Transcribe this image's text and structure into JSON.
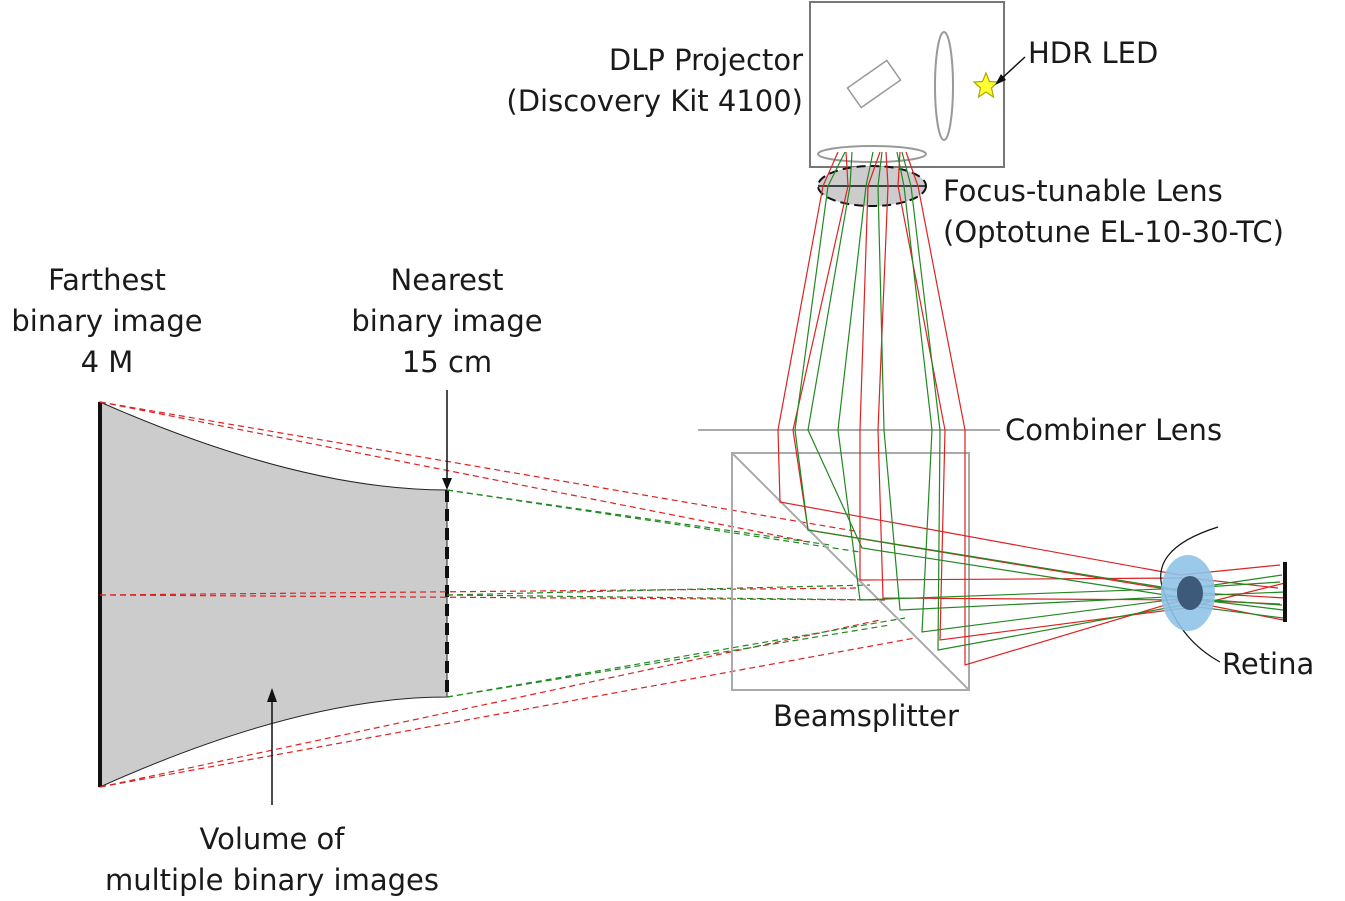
{
  "labels": {
    "dlp_projector": [
      "DLP Projector",
      "(Discovery Kit 4100)"
    ],
    "hdr_led": "HDR LED",
    "focus_lens": [
      "Focus-tunable Lens",
      "(Optotune EL-10-30-TC)"
    ],
    "combiner_lens": "Combiner Lens",
    "beamsplitter": "Beamsplitter",
    "retina": "Retina",
    "farthest": [
      "Farthest",
      "binary image",
      "4 M"
    ],
    "nearest": [
      "Nearest",
      "binary image",
      "15 cm"
    ],
    "volume": [
      "Volume of",
      "multiple binary images"
    ]
  },
  "colors": {
    "red_ray": "#dd2222",
    "green_ray": "#228822",
    "volume_fill": "#cccccc",
    "optics_gray": "#999999",
    "eye_blue": "#8fc3e8",
    "pupil": "#3d5a7a",
    "led_yellow": "#ffff33"
  }
}
